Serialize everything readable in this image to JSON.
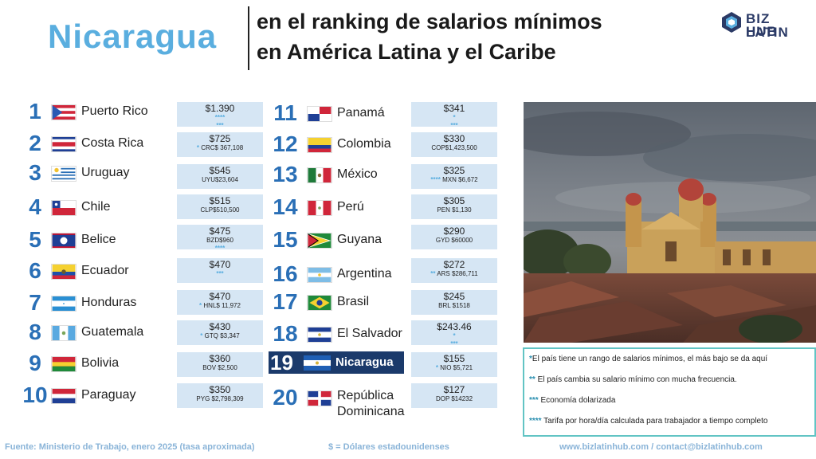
{
  "header": {
    "country": "Nicaragua",
    "title_line1": "en el ranking de salarios mínimos",
    "title_line2": "en América Latina y el Caribe",
    "logo_line1": "BIZ LATIN",
    "logo_line2": "HUB",
    "brand_color": "#2b3a66",
    "accent_color": "#5aaedf"
  },
  "ranking": [
    {
      "rank": "1",
      "country": "Puerto Rico",
      "usd": "$1.390",
      "local": "",
      "mark1": "****",
      "mark2": "***"
    },
    {
      "rank": "2",
      "country": "Costa Rica",
      "usd": "$725",
      "local": "CRC$ 367,108",
      "mark1": "*",
      "mark2": ""
    },
    {
      "rank": "3",
      "country": "Uruguay",
      "usd": "$545",
      "local": "UYU$23,604",
      "mark1": "",
      "mark2": ""
    },
    {
      "rank": "4",
      "country": "Chile",
      "usd": "$515",
      "local": "CLP$510,500",
      "mark1": "",
      "mark2": ""
    },
    {
      "rank": "5",
      "country": "Belice",
      "usd": "$475",
      "local": "BZD$960",
      "mark1": "",
      "mark2": "****"
    },
    {
      "rank": "6",
      "country": "Ecuador",
      "usd": "$470",
      "local": "",
      "mark1": "***",
      "mark2": ""
    },
    {
      "rank": "7",
      "country": "Honduras",
      "usd": "$470",
      "local": "HNL$ 11,972",
      "mark1": "*",
      "mark2": ""
    },
    {
      "rank": "8",
      "country": "Guatemala",
      "usd": "$430",
      "local": "GTQ $3,347",
      "mark1": "*",
      "mark2": ""
    },
    {
      "rank": "9",
      "country": "Bolivia",
      "usd": "$360",
      "local": "BOV $2,500",
      "mark1": "",
      "mark2": ""
    },
    {
      "rank": "10",
      "country": "Paraguay",
      "usd": "$350",
      "local": "PYG $2,798,309",
      "mark1": "",
      "mark2": ""
    },
    {
      "rank": "11",
      "country": "Panamá",
      "usd": "$341",
      "local": "",
      "mark1": "*",
      "mark2": "***"
    },
    {
      "rank": "12",
      "country": "Colombia",
      "usd": "$330",
      "local": "COP$1,423,500",
      "mark1": "",
      "mark2": ""
    },
    {
      "rank": "13",
      "country": "México",
      "usd": "$325",
      "local": "MXN $6,672",
      "mark1": "****",
      "mark2": ""
    },
    {
      "rank": "14",
      "country": "Perú",
      "usd": "$305",
      "local": "PEN $1,130",
      "mark1": "",
      "mark2": ""
    },
    {
      "rank": "15",
      "country": "Guyana",
      "usd": "$290",
      "local": "GYD $60000",
      "mark1": "",
      "mark2": ""
    },
    {
      "rank": "16",
      "country": "Argentina",
      "usd": "$272",
      "local": "ARS $286,711",
      "mark1": "**",
      "mark2": ""
    },
    {
      "rank": "17",
      "country": "Brasil",
      "usd": "$245",
      "local": "BRL $1518",
      "mark1": "",
      "mark2": ""
    },
    {
      "rank": "18",
      "country": "El Salvador",
      "usd": "$243.46",
      "local": "",
      "mark1": "*",
      "mark2": "***"
    },
    {
      "rank": "19",
      "country": "Nicaragua",
      "usd": "$155",
      "local": "NIO  $5,721",
      "mark1": "*",
      "mark2": ""
    },
    {
      "rank": "20",
      "country": "República Dominicana",
      "usd": "$127",
      "local": "DOP $14232",
      "mark1": "",
      "mark2": ""
    }
  ],
  "notes": [
    {
      "mark": "*",
      "text": "El país tiene un rango de salarios mínimos, el más bajo se da aquí"
    },
    {
      "mark": "**",
      "text": " El país cambia su salario mínimo con mucha frecuencia."
    },
    {
      "mark": "***",
      "text": " Economía dolarizada"
    },
    {
      "mark": "****",
      "text": " Tarifa por hora/día calculada para trabajador a tiempo completo"
    }
  ],
  "footer": {
    "source": "Fuente: Ministerio de Trabajo, enero 2025 (tasa aproximada)",
    "currency_note": "$ = Dólares estadounidenses",
    "contact": "www.bizlatinhub.com / contact@bizlatinhub.com"
  }
}
